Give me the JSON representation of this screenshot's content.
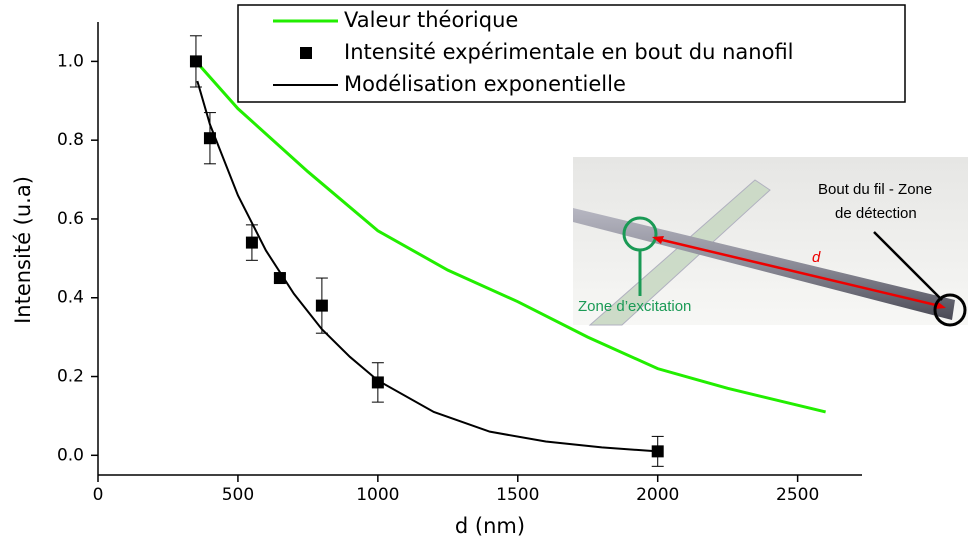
{
  "chart_data": {
    "type": "scatter",
    "xlabel": "d (nm)",
    "ylabel": "Intensité (u.a)",
    "xlim": [
      0,
      2730
    ],
    "ylim": [
      -0.05,
      1.1
    ],
    "xticks": [
      0,
      500,
      1000,
      1500,
      2000,
      2500
    ],
    "yticks": [
      {
        "value": 0,
        "label": "0.0"
      },
      {
        "value": 0.2,
        "label": "0.2"
      },
      {
        "value": 0.4,
        "label": "0.4"
      },
      {
        "value": 0.6,
        "label": "0.6"
      },
      {
        "value": 0.8,
        "label": "0.8"
      },
      {
        "value": 1,
        "label": "1.0"
      }
    ],
    "legend": "top-right",
    "series": [
      {
        "name": "Valeur théorique",
        "color": "#22ee00",
        "style": "line",
        "x": [
          350,
          500,
          750,
          1000,
          1250,
          1500,
          1750,
          2000,
          2250,
          2600
        ],
        "values": [
          1.0,
          0.88,
          0.72,
          0.57,
          0.47,
          0.39,
          0.3,
          0.22,
          0.17,
          0.11
        ]
      },
      {
        "name": "Intensité expérimentale en bout du nanofil",
        "color": "#000000",
        "style": "marker",
        "x": [
          350,
          400,
          550,
          650,
          800,
          1000,
          2000
        ],
        "values": [
          1.0,
          0.805,
          0.54,
          0.45,
          0.38,
          0.185,
          0.01
        ],
        "errors": [
          0.065,
          0.065,
          0.045,
          0.01,
          0.07,
          0.05,
          0.038
        ]
      },
      {
        "name": "Modélisation exponentielle",
        "color": "#000000",
        "style": "line",
        "x": [
          355,
          400,
          500,
          600,
          700,
          800,
          900,
          1000,
          1200,
          1400,
          1600,
          1800,
          2000
        ],
        "values": [
          0.95,
          0.84,
          0.66,
          0.52,
          0.41,
          0.32,
          0.25,
          0.19,
          0.11,
          0.06,
          0.035,
          0.02,
          0.01
        ]
      }
    ]
  },
  "inset": {
    "detection_label": [
      "Bout du fil - Zone",
      "de détection"
    ],
    "distance_label": "d",
    "excitation_label": "Zone d’excitation"
  }
}
